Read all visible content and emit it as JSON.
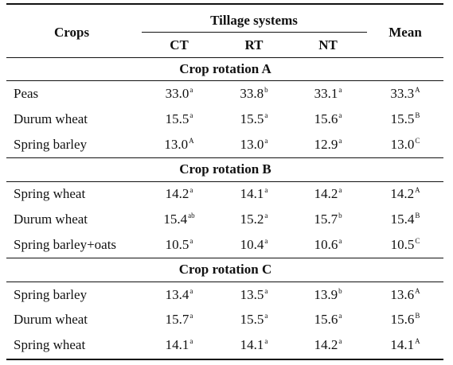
{
  "table": {
    "header": {
      "crops_label": "Crops",
      "group_label": "Tillage systems",
      "col_ct": "CT",
      "col_rt": "RT",
      "col_nt": "NT",
      "col_mean": "Mean"
    },
    "sections": [
      {
        "title": "Crop rotation A",
        "rows": [
          {
            "crop": "Peas",
            "ct": "33.0",
            "ct_sup": "a",
            "rt": "33.8",
            "rt_sup": "b",
            "nt": "33.1",
            "nt_sup": "a",
            "mean": "33.3",
            "mean_sup": "A"
          },
          {
            "crop": "Durum wheat",
            "ct": "15.5",
            "ct_sup": "a",
            "rt": "15.5",
            "rt_sup": "a",
            "nt": "15.6",
            "nt_sup": "a",
            "mean": "15.5",
            "mean_sup": "B"
          },
          {
            "crop": "Spring barley",
            "ct": "13.0",
            "ct_sup": "A",
            "rt": "13.0",
            "rt_sup": "a",
            "nt": "12.9",
            "nt_sup": "a",
            "mean": "13.0",
            "mean_sup": "C"
          }
        ]
      },
      {
        "title": "Crop rotation B",
        "rows": [
          {
            "crop": "Spring wheat",
            "ct": "14.2",
            "ct_sup": "a",
            "rt": "14.1",
            "rt_sup": "a",
            "nt": "14.2",
            "nt_sup": "a",
            "mean": "14.2",
            "mean_sup": "A"
          },
          {
            "crop": "Durum wheat",
            "ct": "15.4",
            "ct_sup": "ab",
            "rt": "15.2",
            "rt_sup": "a",
            "nt": "15.7",
            "nt_sup": "b",
            "mean": "15.4",
            "mean_sup": "B"
          },
          {
            "crop": "Spring barley+oats",
            "ct": "10.5",
            "ct_sup": "a",
            "rt": "10.4",
            "rt_sup": "a",
            "nt": "10.6",
            "nt_sup": "a",
            "mean": "10.5",
            "mean_sup": "C"
          }
        ]
      },
      {
        "title": "Crop rotation C",
        "rows": [
          {
            "crop": "Spring barley",
            "ct": "13.4",
            "ct_sup": "a",
            "rt": "13.5",
            "rt_sup": "a",
            "nt": "13.9",
            "nt_sup": "b",
            "mean": "13.6",
            "mean_sup": "A"
          },
          {
            "crop": "Durum wheat",
            "ct": "15.7",
            "ct_sup": "a",
            "rt": "15.5",
            "rt_sup": "a",
            "nt": "15.6",
            "nt_sup": "a",
            "mean": "15.6",
            "mean_sup": "B"
          },
          {
            "crop": "Spring wheat",
            "ct": "14.1",
            "ct_sup": "a",
            "rt": "14.1",
            "rt_sup": "a",
            "nt": "14.2",
            "nt_sup": "a",
            "mean": "14.1",
            "mean_sup": "A"
          }
        ]
      }
    ]
  }
}
